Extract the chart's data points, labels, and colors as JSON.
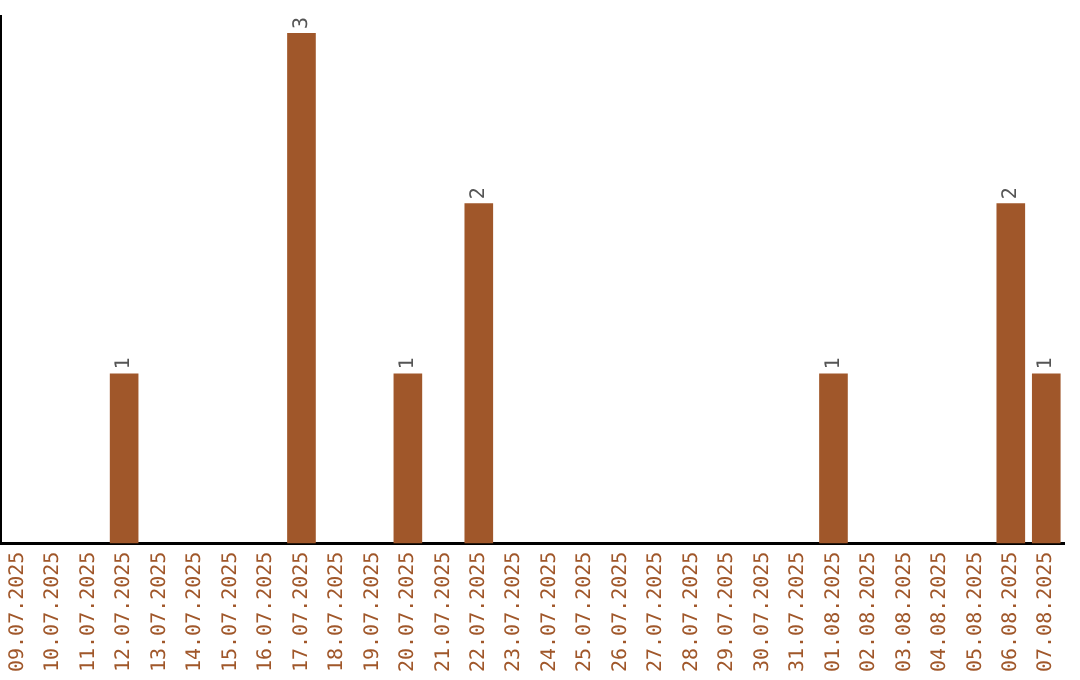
{
  "chart_data": {
    "type": "bar",
    "categories": [
      "09.07.2025",
      "10.07.2025",
      "11.07.2025",
      "12.07.2025",
      "13.07.2025",
      "14.07.2025",
      "15.07.2025",
      "16.07.2025",
      "17.07.2025",
      "18.07.2025",
      "19.07.2025",
      "20.07.2025",
      "21.07.2025",
      "22.07.2025",
      "23.07.2025",
      "24.07.2025",
      "25.07.2025",
      "26.07.2025",
      "27.07.2025",
      "28.07.2025",
      "29.07.2025",
      "30.07.2025",
      "31.07.2025",
      "01.08.2025",
      "02.08.2025",
      "03.08.2025",
      "04.08.2025",
      "05.08.2025",
      "06.08.2025",
      "07.08.2025"
    ],
    "values": [
      0,
      0,
      0,
      1,
      0,
      0,
      0,
      0,
      3,
      0,
      0,
      1,
      0,
      2,
      0,
      0,
      0,
      0,
      0,
      0,
      0,
      0,
      0,
      1,
      0,
      0,
      0,
      0,
      2,
      1
    ],
    "value_labels": [
      null,
      null,
      null,
      "1",
      null,
      null,
      null,
      null,
      "3",
      null,
      null,
      "1",
      null,
      "2",
      null,
      null,
      null,
      null,
      null,
      null,
      null,
      null,
      null,
      "1",
      null,
      null,
      null,
      null,
      "2",
      "1"
    ],
    "color": "#a0572a",
    "ylim": [
      0,
      3.1
    ],
    "tick_labels": "x",
    "grid": false,
    "legend": false
  }
}
